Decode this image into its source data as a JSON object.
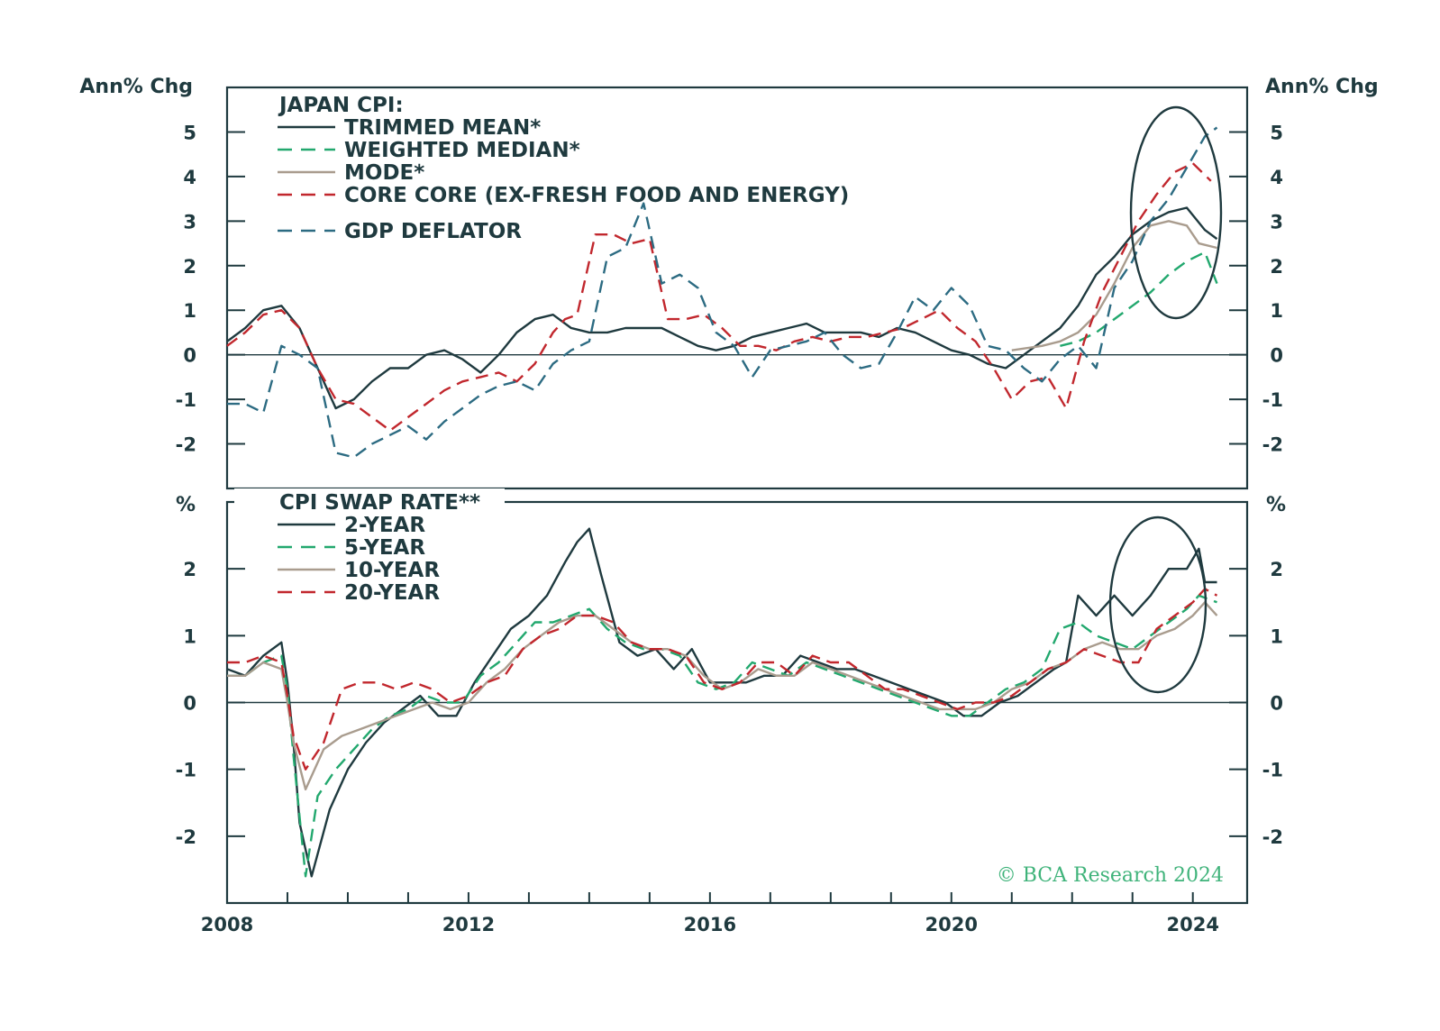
{
  "colors": {
    "axis": "#1f3a3f",
    "trimmed": "#1f3a3f",
    "median": "#22a86e",
    "mode": "#a99c8e",
    "corecore": "#c1272d",
    "deflator": "#2c6b82",
    "swap2": "#1f3a3f",
    "swap5": "#22a86e",
    "swap10": "#a99c8e",
    "swap20": "#c1272d"
  },
  "x_ticks": [
    "2008",
    "2012",
    "2016",
    "2020",
    "2024"
  ],
  "copyright": "© BCA Research 2024",
  "chart_data": [
    {
      "type": "line",
      "title": "JAPAN CPI:",
      "ylabel_left": "Ann% Chg",
      "ylabel_right": "Ann% Chg",
      "xlim": [
        2008,
        2024.9
      ],
      "ylim": [
        -3,
        6
      ],
      "yticks": [
        "-2",
        "-1",
        "0",
        "1",
        "2",
        "3",
        "4",
        "5"
      ],
      "ytick_values": [
        -2,
        -1,
        0,
        1,
        2,
        3,
        4,
        5
      ],
      "series": [
        {
          "key": "trimmed",
          "name": "TRIMMED MEAN*",
          "dash": "solid",
          "x": [
            2008.0,
            2008.3,
            2008.6,
            2008.9,
            2009.2,
            2009.5,
            2009.8,
            2010.1,
            2010.4,
            2010.7,
            2011.0,
            2011.3,
            2011.6,
            2011.9,
            2012.2,
            2012.5,
            2012.8,
            2013.1,
            2013.4,
            2013.7,
            2014.0,
            2014.3,
            2014.6,
            2014.9,
            2015.2,
            2015.5,
            2015.8,
            2016.1,
            2016.4,
            2016.7,
            2017.0,
            2017.3,
            2017.6,
            2017.9,
            2018.2,
            2018.5,
            2018.8,
            2019.1,
            2019.4,
            2019.7,
            2020.0,
            2020.3,
            2020.6,
            2020.9,
            2021.2,
            2021.5,
            2021.8,
            2022.1,
            2022.4,
            2022.7,
            2023.0,
            2023.3,
            2023.6,
            2023.9,
            2024.2,
            2024.4
          ],
          "values": [
            0.3,
            0.6,
            1.0,
            1.1,
            0.6,
            -0.3,
            -1.2,
            -1.0,
            -0.6,
            -0.3,
            -0.3,
            0.0,
            0.1,
            -0.1,
            -0.4,
            0.0,
            0.5,
            0.8,
            0.9,
            0.6,
            0.5,
            0.5,
            0.6,
            0.6,
            0.6,
            0.4,
            0.2,
            0.1,
            0.2,
            0.4,
            0.5,
            0.6,
            0.7,
            0.5,
            0.5,
            0.5,
            0.4,
            0.6,
            0.5,
            0.3,
            0.1,
            0.0,
            -0.2,
            -0.3,
            0.0,
            0.3,
            0.6,
            1.1,
            1.8,
            2.2,
            2.7,
            3.0,
            3.2,
            3.3,
            2.8,
            2.6
          ]
        },
        {
          "key": "median",
          "name": "WEIGHTED MEDIAN*",
          "dash": "dash",
          "x": [
            2021.8,
            2022.1,
            2022.4,
            2022.7,
            2023.0,
            2023.3,
            2023.6,
            2023.9,
            2024.2,
            2024.4
          ],
          "values": [
            0.2,
            0.3,
            0.5,
            0.8,
            1.1,
            1.4,
            1.8,
            2.1,
            2.3,
            1.6
          ]
        },
        {
          "key": "mode",
          "name": "MODE*",
          "dash": "solid",
          "x": [
            2021.0,
            2021.5,
            2021.8,
            2022.1,
            2022.4,
            2022.7,
            2023.0,
            2023.3,
            2023.6,
            2023.9,
            2024.1,
            2024.4
          ],
          "values": [
            0.1,
            0.2,
            0.3,
            0.5,
            0.9,
            1.6,
            2.4,
            2.9,
            3.0,
            2.9,
            2.5,
            2.4
          ]
        },
        {
          "key": "corecore",
          "name": "CORE CORE (EX-FRESH FOOD AND ENERGY)",
          "dash": "dash",
          "x": [
            2008.0,
            2008.3,
            2008.6,
            2008.9,
            2009.2,
            2009.5,
            2009.8,
            2010.1,
            2010.4,
            2010.7,
            2011.0,
            2011.3,
            2011.6,
            2011.9,
            2012.2,
            2012.5,
            2012.8,
            2013.1,
            2013.4,
            2013.6,
            2013.8,
            2014.1,
            2014.4,
            2014.7,
            2015.0,
            2015.3,
            2015.6,
            2015.9,
            2016.2,
            2016.5,
            2016.8,
            2017.1,
            2017.4,
            2017.7,
            2018.0,
            2018.3,
            2018.6,
            2018.9,
            2019.2,
            2019.5,
            2019.8,
            2020.1,
            2020.4,
            2020.7,
            2021.0,
            2021.3,
            2021.6,
            2021.9,
            2022.2,
            2022.5,
            2022.8,
            2023.1,
            2023.4,
            2023.7,
            2024.0,
            2024.3
          ],
          "values": [
            0.2,
            0.5,
            0.9,
            1.0,
            0.6,
            -0.3,
            -1.0,
            -1.1,
            -1.4,
            -1.7,
            -1.4,
            -1.1,
            -0.8,
            -0.6,
            -0.5,
            -0.4,
            -0.6,
            -0.2,
            0.5,
            0.8,
            0.9,
            2.7,
            2.7,
            2.5,
            2.6,
            0.8,
            0.8,
            0.9,
            0.6,
            0.2,
            0.2,
            0.1,
            0.3,
            0.4,
            0.3,
            0.4,
            0.4,
            0.5,
            0.6,
            0.8,
            1.0,
            0.6,
            0.3,
            -0.3,
            -1.0,
            -0.6,
            -0.5,
            -1.2,
            0.3,
            1.4,
            2.2,
            3.0,
            3.6,
            4.1,
            4.3,
            3.9
          ]
        },
        {
          "key": "deflator",
          "name": "GDP DEFLATOR",
          "dash": "dash",
          "x": [
            2008.0,
            2008.3,
            2008.6,
            2008.9,
            2009.2,
            2009.5,
            2009.8,
            2010.1,
            2010.4,
            2010.7,
            2011.0,
            2011.3,
            2011.6,
            2011.9,
            2012.2,
            2012.5,
            2012.8,
            2013.1,
            2013.4,
            2013.7,
            2014.0,
            2014.3,
            2014.6,
            2014.9,
            2015.2,
            2015.5,
            2015.8,
            2016.1,
            2016.4,
            2016.7,
            2017.0,
            2017.3,
            2017.6,
            2017.9,
            2018.2,
            2018.5,
            2018.8,
            2019.1,
            2019.4,
            2019.7,
            2020.0,
            2020.3,
            2020.6,
            2020.9,
            2021.2,
            2021.5,
            2021.8,
            2022.1,
            2022.4,
            2022.7,
            2023.0,
            2023.3,
            2023.6,
            2023.9,
            2024.2,
            2024.4
          ],
          "values": [
            -1.1,
            -1.1,
            -1.3,
            0.2,
            0.0,
            -0.3,
            -2.2,
            -2.3,
            -2.0,
            -1.8,
            -1.6,
            -1.9,
            -1.5,
            -1.2,
            -0.9,
            -0.7,
            -0.6,
            -0.8,
            -0.2,
            0.1,
            0.3,
            2.2,
            2.4,
            3.4,
            1.6,
            1.8,
            1.5,
            0.5,
            0.2,
            -0.5,
            0.1,
            0.2,
            0.3,
            0.5,
            0.0,
            -0.3,
            -0.2,
            0.5,
            1.3,
            1.0,
            1.5,
            1.1,
            0.2,
            0.1,
            -0.3,
            -0.6,
            -0.1,
            0.2,
            -0.3,
            1.5,
            2.1,
            3.0,
            3.5,
            4.2,
            4.9,
            5.1
          ]
        }
      ]
    },
    {
      "type": "line",
      "title": "CPI SWAP RATE**",
      "ylabel_left": "%",
      "ylabel_right": "%",
      "xlim": [
        2008,
        2024.9
      ],
      "ylim": [
        -3,
        3
      ],
      "yticks": [
        "-2",
        "-1",
        "0",
        "1",
        "2"
      ],
      "ytick_values": [
        -2,
        -1,
        0,
        1,
        2
      ],
      "series": [
        {
          "key": "swap2",
          "name": "2-YEAR",
          "dash": "solid",
          "x": [
            2008.0,
            2008.3,
            2008.6,
            2008.9,
            2009.0,
            2009.1,
            2009.2,
            2009.4,
            2009.7,
            2010.0,
            2010.3,
            2010.6,
            2010.9,
            2011.2,
            2011.5,
            2011.8,
            2012.1,
            2012.4,
            2012.7,
            2013.0,
            2013.3,
            2013.6,
            2013.8,
            2014.0,
            2014.2,
            2014.5,
            2014.8,
            2015.1,
            2015.4,
            2015.7,
            2016.0,
            2016.3,
            2016.6,
            2016.9,
            2017.2,
            2017.5,
            2017.8,
            2018.1,
            2018.4,
            2018.7,
            2019.0,
            2019.3,
            2019.6,
            2019.9,
            2020.2,
            2020.5,
            2020.8,
            2021.1,
            2021.4,
            2021.7,
            2021.9,
            2022.1,
            2022.4,
            2022.7,
            2023.0,
            2023.3,
            2023.6,
            2023.9,
            2024.1,
            2024.2,
            2024.4
          ],
          "values": [
            0.5,
            0.4,
            0.7,
            0.9,
            0.3,
            -0.6,
            -1.8,
            -2.6,
            -1.6,
            -1.0,
            -0.6,
            -0.3,
            -0.1,
            0.1,
            -0.2,
            -0.2,
            0.3,
            0.7,
            1.1,
            1.3,
            1.6,
            2.1,
            2.4,
            2.6,
            1.9,
            0.9,
            0.7,
            0.8,
            0.5,
            0.8,
            0.3,
            0.3,
            0.3,
            0.4,
            0.4,
            0.7,
            0.6,
            0.5,
            0.5,
            0.4,
            0.3,
            0.2,
            0.1,
            0.0,
            -0.2,
            -0.2,
            0.0,
            0.1,
            0.3,
            0.5,
            0.6,
            1.6,
            1.3,
            1.6,
            1.3,
            1.6,
            2.0,
            2.0,
            2.3,
            1.8,
            1.8
          ]
        },
        {
          "key": "swap5",
          "name": "5-YEAR",
          "dash": "dash",
          "x": [
            2008.0,
            2008.3,
            2008.6,
            2008.9,
            2009.0,
            2009.1,
            2009.3,
            2009.5,
            2009.8,
            2010.1,
            2010.4,
            2010.7,
            2011.0,
            2011.3,
            2011.6,
            2011.9,
            2012.2,
            2012.5,
            2012.8,
            2013.1,
            2013.4,
            2013.7,
            2014.0,
            2014.3,
            2014.6,
            2014.9,
            2015.2,
            2015.5,
            2015.8,
            2016.1,
            2016.4,
            2016.7,
            2017.0,
            2017.3,
            2017.6,
            2017.9,
            2018.2,
            2018.5,
            2018.8,
            2019.1,
            2019.4,
            2019.7,
            2020.0,
            2020.3,
            2020.6,
            2020.9,
            2021.2,
            2021.5,
            2021.8,
            2022.1,
            2022.4,
            2022.7,
            2023.0,
            2023.3,
            2023.6,
            2023.9,
            2024.1,
            2024.4
          ],
          "values": [
            0.4,
            0.4,
            0.6,
            0.7,
            0.2,
            -0.8,
            -2.6,
            -1.4,
            -1.0,
            -0.7,
            -0.4,
            -0.2,
            -0.1,
            0.1,
            0.0,
            0.0,
            0.4,
            0.6,
            0.9,
            1.2,
            1.2,
            1.3,
            1.4,
            1.1,
            0.9,
            0.8,
            0.8,
            0.7,
            0.3,
            0.2,
            0.3,
            0.6,
            0.5,
            0.4,
            0.6,
            0.5,
            0.4,
            0.3,
            0.2,
            0.1,
            0.0,
            -0.1,
            -0.2,
            -0.2,
            0.0,
            0.2,
            0.3,
            0.5,
            1.1,
            1.2,
            1.0,
            0.9,
            0.8,
            1.0,
            1.2,
            1.4,
            1.6,
            1.5
          ]
        },
        {
          "key": "swap10",
          "name": "10-YEAR",
          "dash": "solid",
          "x": [
            2008.0,
            2008.3,
            2008.6,
            2008.9,
            2009.0,
            2009.1,
            2009.3,
            2009.6,
            2009.9,
            2010.2,
            2010.5,
            2010.8,
            2011.1,
            2011.4,
            2011.7,
            2012.0,
            2012.3,
            2012.6,
            2012.9,
            2013.2,
            2013.5,
            2013.8,
            2014.1,
            2014.4,
            2014.7,
            2015.0,
            2015.3,
            2015.6,
            2015.9,
            2016.2,
            2016.5,
            2016.8,
            2017.1,
            2017.4,
            2017.7,
            2018.0,
            2018.3,
            2018.6,
            2018.9,
            2019.2,
            2019.5,
            2019.8,
            2020.1,
            2020.4,
            2020.7,
            2021.0,
            2021.3,
            2021.6,
            2021.9,
            2022.2,
            2022.5,
            2022.8,
            2023.1,
            2023.4,
            2023.7,
            2024.0,
            2024.2,
            2024.4
          ],
          "values": [
            0.4,
            0.4,
            0.6,
            0.5,
            0.0,
            -0.6,
            -1.3,
            -0.7,
            -0.5,
            -0.4,
            -0.3,
            -0.2,
            -0.1,
            0.0,
            -0.1,
            0.0,
            0.3,
            0.5,
            0.8,
            1.0,
            1.2,
            1.3,
            1.3,
            1.1,
            0.9,
            0.8,
            0.8,
            0.7,
            0.4,
            0.2,
            0.3,
            0.5,
            0.4,
            0.4,
            0.6,
            0.5,
            0.4,
            0.3,
            0.2,
            0.1,
            0.0,
            -0.1,
            -0.1,
            -0.1,
            0.0,
            0.2,
            0.3,
            0.5,
            0.6,
            0.8,
            0.9,
            0.8,
            0.8,
            1.0,
            1.1,
            1.3,
            1.5,
            1.3
          ]
        },
        {
          "key": "swap20",
          "name": "20-YEAR",
          "dash": "dash",
          "x": [
            2008.0,
            2008.3,
            2008.6,
            2008.9,
            2009.0,
            2009.1,
            2009.3,
            2009.6,
            2009.9,
            2010.2,
            2010.5,
            2010.8,
            2011.1,
            2011.4,
            2011.7,
            2012.0,
            2012.3,
            2012.6,
            2012.9,
            2013.2,
            2013.5,
            2013.8,
            2014.1,
            2014.4,
            2014.7,
            2015.0,
            2015.3,
            2015.6,
            2015.9,
            2016.2,
            2016.5,
            2016.8,
            2017.1,
            2017.4,
            2017.7,
            2018.0,
            2018.3,
            2018.6,
            2018.9,
            2019.2,
            2019.5,
            2019.8,
            2020.1,
            2020.4,
            2020.7,
            2021.0,
            2021.3,
            2021.6,
            2021.9,
            2022.2,
            2022.5,
            2022.8,
            2023.1,
            2023.4,
            2023.7,
            2024.0,
            2024.2,
            2024.4
          ],
          "values": [
            0.6,
            0.6,
            0.7,
            0.6,
            0.1,
            -0.5,
            -1.0,
            -0.6,
            0.2,
            0.3,
            0.3,
            0.2,
            0.3,
            0.2,
            0.0,
            0.1,
            0.3,
            0.4,
            0.8,
            1.0,
            1.1,
            1.3,
            1.3,
            1.2,
            0.9,
            0.8,
            0.8,
            0.7,
            0.3,
            0.2,
            0.3,
            0.6,
            0.6,
            0.4,
            0.7,
            0.6,
            0.6,
            0.4,
            0.2,
            0.2,
            0.1,
            0.0,
            -0.1,
            0.0,
            0.0,
            0.1,
            0.3,
            0.5,
            0.6,
            0.8,
            0.7,
            0.6,
            0.6,
            1.1,
            1.3,
            1.5,
            1.7,
            1.6
          ]
        }
      ]
    }
  ]
}
